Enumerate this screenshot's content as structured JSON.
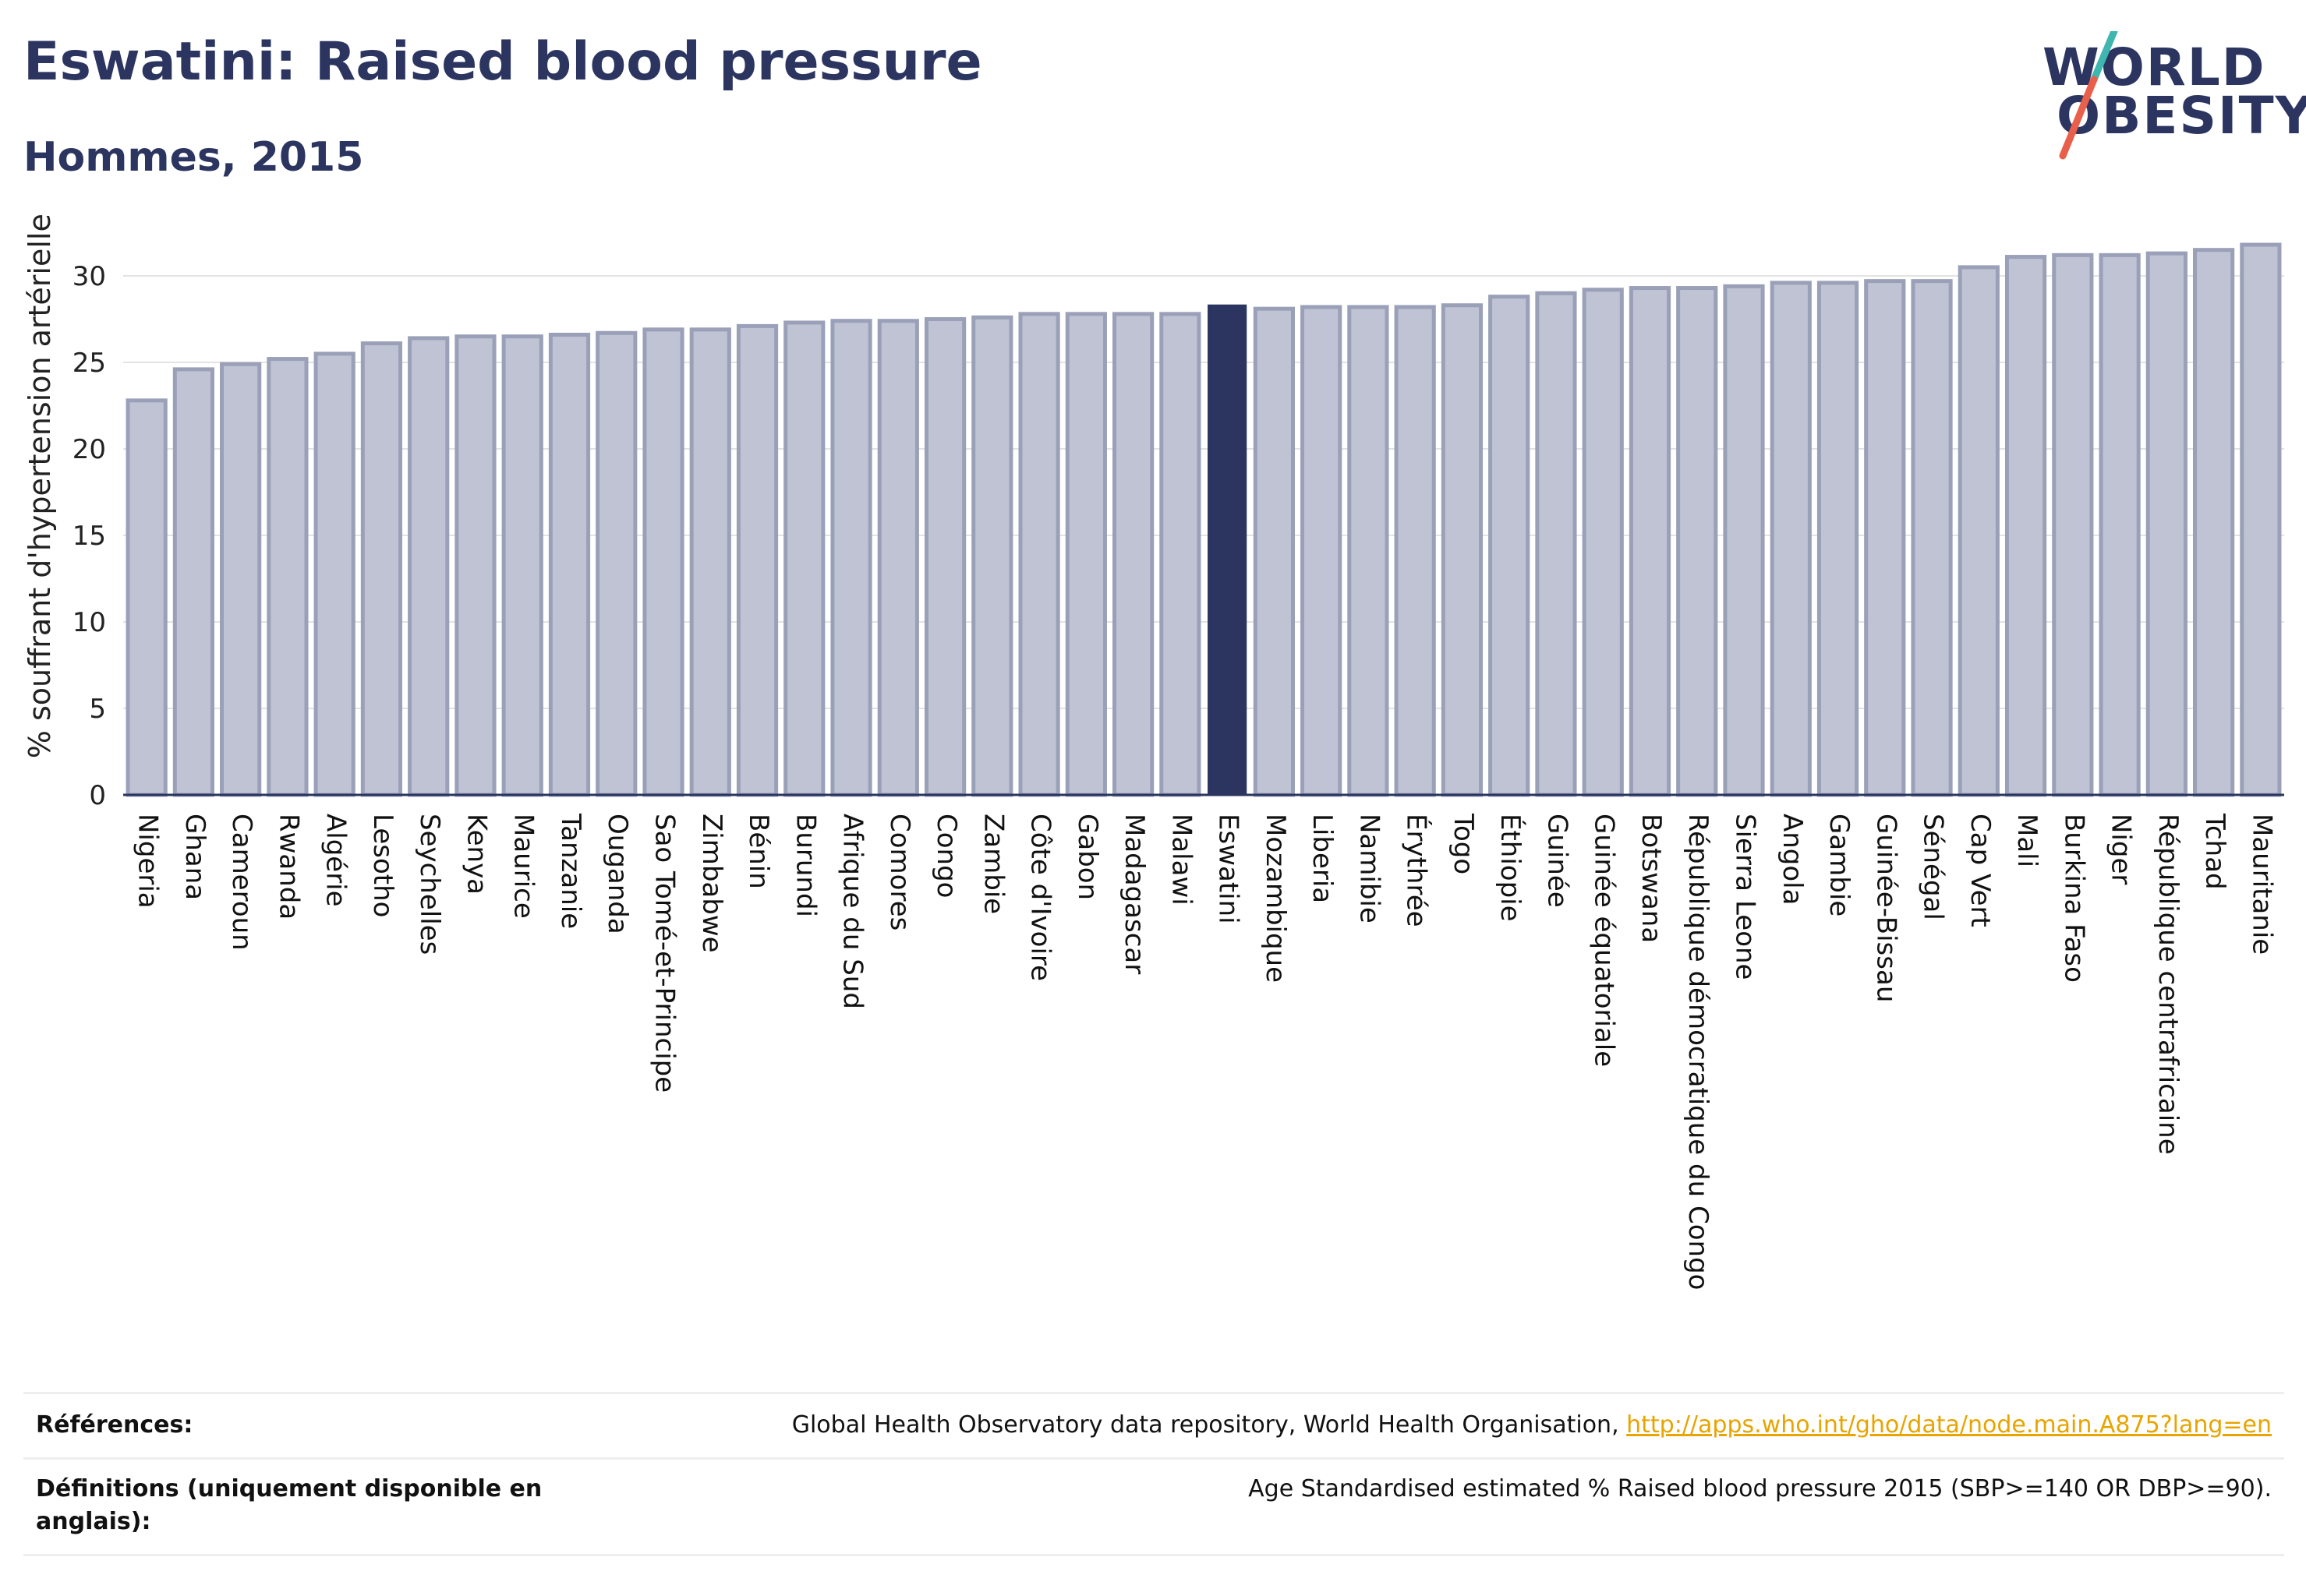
{
  "header": {
    "title": "Eswatini: Raised blood pressure",
    "subtitle": "Hommes, 2015"
  },
  "logo": {
    "line1": "WORLD",
    "line2": "OBESITY",
    "colors": {
      "text": "#2b3560",
      "slash_top": "#3fb6b0",
      "slash_bottom": "#e8604c"
    }
  },
  "colors": {
    "bar_fill": "#bfc3d3",
    "bar_stroke": "#9aa0b8",
    "highlight_fill": "#2b3560",
    "axis": "#2b3560",
    "grid": "#e3e3e3",
    "link": "#e8a400"
  },
  "chart_data": {
    "type": "bar",
    "ylabel": "% souffrant d'hypertension artérielle",
    "xlabel": "",
    "ylim": [
      0,
      33
    ],
    "yticks": [
      0,
      5,
      10,
      15,
      20,
      25,
      30
    ],
    "grid": true,
    "highlight": "Eswatini",
    "categories": [
      "Nigeria",
      "Ghana",
      "Cameroun",
      "Rwanda",
      "Algérie",
      "Lesotho",
      "Seychelles",
      "Kenya",
      "Maurice",
      "Tanzanie",
      "Ouganda",
      "Sao Tomé-et-Principe",
      "Zimbabwe",
      "Bénin",
      "Burundi",
      "Afrique du Sud",
      "Comores",
      "Congo",
      "Zambie",
      "Côte d'Ivoire",
      "Gabon",
      "Madagascar",
      "Malawi",
      "Eswatini",
      "Mozambique",
      "Liberia",
      "Namibie",
      "Érythrée",
      "Togo",
      "Éthiopie",
      "Guinée",
      "Guinée équatoriale",
      "Botswana",
      "République démocratique du Congo",
      "Sierra Leone",
      "Angola",
      "Gambie",
      "Guinée-Bissau",
      "Sénégal",
      "Cap Vert",
      "Mali",
      "Burkina Faso",
      "Niger",
      "République centrafricaine",
      "Tchad",
      "Mauritanie"
    ],
    "values": [
      22.8,
      24.6,
      24.9,
      25.2,
      25.5,
      26.1,
      26.4,
      26.5,
      26.5,
      26.6,
      26.7,
      26.9,
      26.9,
      27.1,
      27.3,
      27.4,
      27.4,
      27.5,
      27.6,
      27.8,
      27.8,
      27.8,
      27.8,
      28.3,
      28.1,
      28.2,
      28.2,
      28.2,
      28.3,
      28.8,
      29.0,
      29.2,
      29.3,
      29.3,
      29.4,
      29.6,
      29.6,
      29.7,
      29.7,
      30.5,
      31.1,
      31.2,
      31.2,
      31.3,
      31.5,
      31.8
    ]
  },
  "footer": {
    "references_label": "Références:",
    "references_text": "Global Health Observatory data repository, World Health Organisation, ",
    "references_link": "http://apps.who.int/gho/data/node.main.A875?lang=en",
    "definitions_label_line1": "Définitions (uniquement disponible en",
    "definitions_label_line2": "anglais):",
    "definitions_text": "Age Standardised estimated % Raised blood pressure 2015 (SBP>=140 OR DBP>=90)."
  }
}
